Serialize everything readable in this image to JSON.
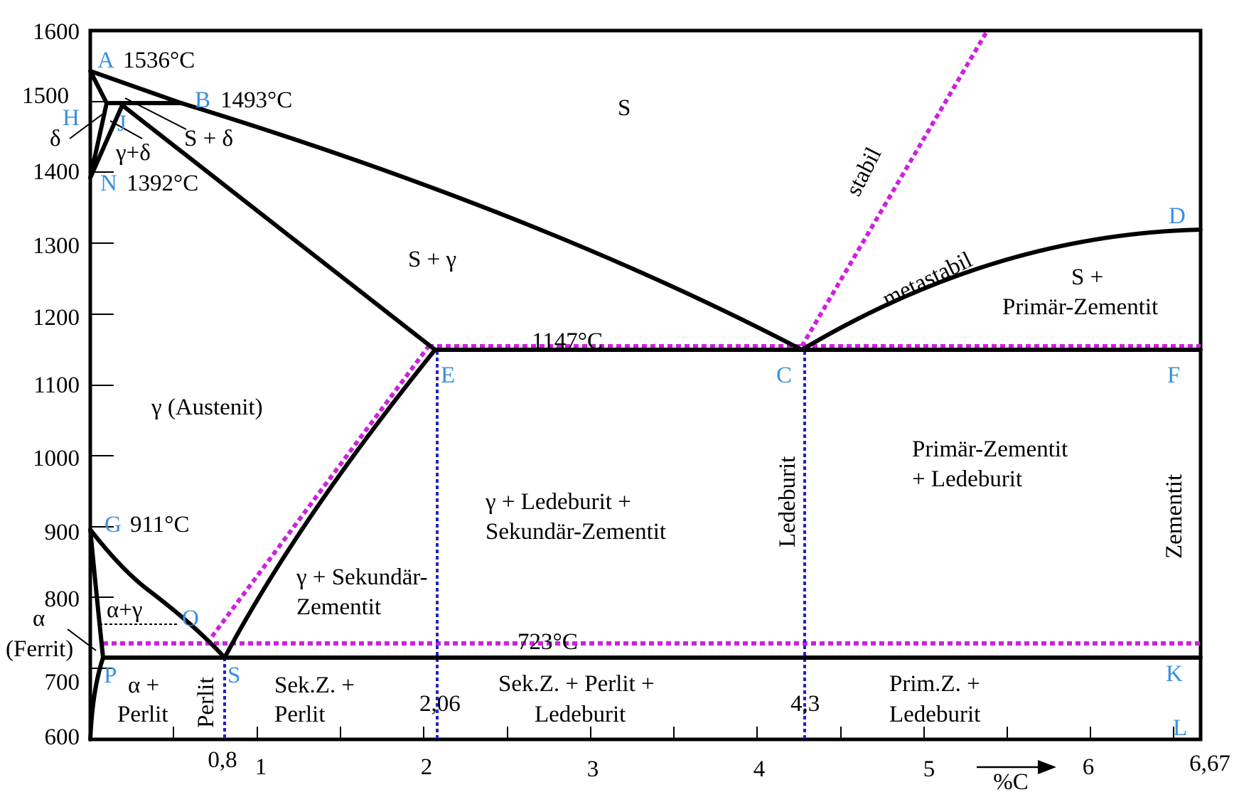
{
  "colors": {
    "curve": "#000000",
    "stable": "#cc22dd",
    "point_label": "#3a8fe0",
    "vertical_dotted": "#2222cc"
  },
  "chart_data": {
    "type": "diagram",
    "xlim": [
      0,
      6.67
    ],
    "ylim": [
      600,
      1600
    ],
    "x_axis_label": "%C",
    "y_ticks": [
      "1600",
      "1500",
      "1400",
      "1300",
      "1200",
      "1100",
      "1000",
      "900",
      "800",
      "700",
      "600"
    ],
    "x_ticks": [
      "1",
      "2",
      "3",
      "4",
      "5",
      "6"
    ],
    "x_special_ticks": [
      "0,8",
      "6,67"
    ],
    "points": [
      {
        "name": "A",
        "label": "A",
        "temp_label": "1536°C"
      },
      {
        "name": "B",
        "label": "B",
        "temp_label": "1493°C"
      },
      {
        "name": "H",
        "label": "H"
      },
      {
        "name": "J",
        "label": "J"
      },
      {
        "name": "N",
        "label": "N",
        "temp_label": "1392°C"
      },
      {
        "name": "D",
        "label": "D"
      },
      {
        "name": "E",
        "label": "E"
      },
      {
        "name": "C",
        "label": "C"
      },
      {
        "name": "F",
        "label": "F"
      },
      {
        "name": "G",
        "label": "G",
        "temp_label": "911°C"
      },
      {
        "name": "O",
        "label": "O"
      },
      {
        "name": "P",
        "label": "P"
      },
      {
        "name": "S",
        "label": "S"
      },
      {
        "name": "K",
        "label": "K"
      },
      {
        "name": "L",
        "label": "L"
      }
    ],
    "isotherm_labels": {
      "eutectic": "1147°C",
      "eutectoid": "723°C"
    },
    "composition_labels": {
      "e": "2,06",
      "c": "4,3"
    },
    "line_labels": {
      "stable": "stabil",
      "metastable": "metastabil"
    },
    "regions": {
      "melt": "S",
      "melt_gamma": "S + γ",
      "melt_delta": "S + δ",
      "delta": "δ",
      "gamma_delta": "γ+δ",
      "austenite": "γ (Austenit)",
      "alpha_gamma": "α+γ",
      "alpha_line1": "α",
      "alpha_line2": "(Ferrit)",
      "gamma_sek_line1": "γ + Sekundär-",
      "gamma_sek_line2": "Zementit",
      "gamma_led_line1": "γ + Ledeburit +",
      "gamma_led_line2": "Sekundär-Zementit",
      "ledeburit": "Ledeburit",
      "prim_led_line1": "Primär-Zementit",
      "prim_led_line2": "+ Ledeburit",
      "zementit": "Zementit",
      "melt_prim_line1": "S +",
      "melt_prim_line2": "Primär-Zementit",
      "alpha_perlit_line1": "α +",
      "alpha_perlit_line2": "Perlit",
      "perlit": "Perlit",
      "sek_perlit_line1": "Sek.Z. +",
      "sek_perlit_line2": "Perlit",
      "sek_perlit_led_line1": "Sek.Z. + Perlit +",
      "sek_perlit_led_line2": "Ledeburit",
      "prim_led2_line1": "Prim.Z. +",
      "prim_led2_line2": "Ledeburit"
    }
  }
}
